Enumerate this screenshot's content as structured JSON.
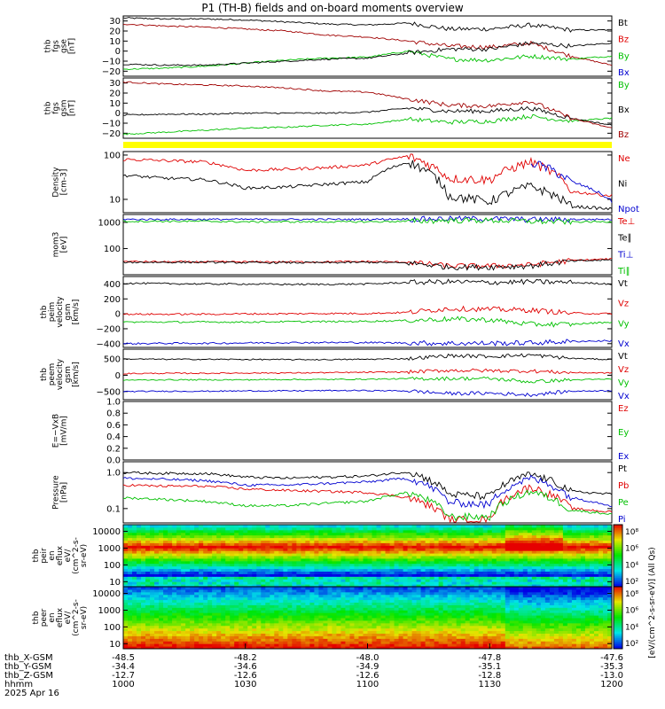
{
  "title": "P1 (TH-B) fields and on-board moments overview",
  "panels": [
    {
      "ylabel": [
        "thb",
        "fgs",
        "gse",
        "[nT]"
      ],
      "ticks": [
        {
          "v": 30,
          "t": "30"
        },
        {
          "v": 20,
          "t": "20"
        },
        {
          "v": 10,
          "t": "10"
        },
        {
          "v": 0,
          "t": "0"
        },
        {
          "v": -10,
          "t": "−10"
        },
        {
          "v": -20,
          "t": "−20"
        }
      ],
      "legend": [
        {
          "t": "Bt",
          "c": "#000000"
        },
        {
          "t": "Bz",
          "c": "#e00000"
        },
        {
          "t": "By",
          "c": "#00c000"
        },
        {
          "t": "Bx",
          "c": "#0000d0"
        }
      ]
    },
    {
      "ylabel": [
        "thb",
        "fgs",
        "gsm",
        "[nT]"
      ],
      "ticks": [
        {
          "v": 30,
          "t": "30"
        },
        {
          "v": 20,
          "t": "20"
        },
        {
          "v": 10,
          "t": "10"
        },
        {
          "v": 0,
          "t": "0"
        },
        {
          "v": -10,
          "t": "−10"
        },
        {
          "v": -20,
          "t": "−20"
        }
      ],
      "legend": [
        {
          "t": "By",
          "c": "#00c000"
        },
        {
          "t": "Bx",
          "c": "#000000"
        },
        {
          "t": "Bz",
          "c": "#a00000"
        }
      ]
    },
    {
      "ylabel": [
        "Density",
        "[cm-3]"
      ],
      "ticks": [
        {
          "v": 100,
          "t": "100"
        },
        {
          "v": 10,
          "t": "10"
        }
      ],
      "legend": [
        {
          "t": "Ne",
          "c": "#e00000"
        },
        {
          "t": "Ni",
          "c": "#000000"
        },
        {
          "t": "Npot",
          "c": "#0000d0"
        }
      ]
    },
    {
      "ylabel": [
        "mom3",
        "[eV]"
      ],
      "ticks": [
        {
          "v": 1000,
          "t": "1000"
        },
        {
          "v": 100,
          "t": "100"
        }
      ],
      "legend": [
        {
          "t": "Te⊥",
          "c": "#e00000"
        },
        {
          "t": "Te∥",
          "c": "#000000"
        },
        {
          "t": "Ti⊥",
          "c": "#0000d0"
        },
        {
          "t": "Ti∥",
          "c": "#00c000"
        }
      ]
    },
    {
      "ylabel": [
        "thb",
        "peim",
        "velocity",
        "gsm",
        "[km/s]"
      ],
      "ticks": [
        {
          "v": 400,
          "t": "400"
        },
        {
          "v": 200,
          "t": "200"
        },
        {
          "v": 0,
          "t": "0"
        },
        {
          "v": -200,
          "t": "−200"
        },
        {
          "v": -400,
          "t": "−400"
        }
      ],
      "legend": [
        {
          "t": "Vt",
          "c": "#000000"
        },
        {
          "t": "Vz",
          "c": "#e00000"
        },
        {
          "t": "Vy",
          "c": "#00c000"
        },
        {
          "t": "Vx",
          "c": "#0000d0"
        }
      ]
    },
    {
      "ylabel": [
        "thb",
        "peem",
        "velocity",
        "gsm",
        "[km/s]"
      ],
      "ticks": [
        {
          "v": 500,
          "t": "500"
        },
        {
          "v": 0,
          "t": "0"
        },
        {
          "v": -500,
          "t": "−500"
        }
      ],
      "legend": [
        {
          "t": "Vt",
          "c": "#000000"
        },
        {
          "t": "Vz",
          "c": "#e00000"
        },
        {
          "t": "Vy",
          "c": "#00c000"
        },
        {
          "t": "Vx",
          "c": "#0000d0"
        }
      ]
    },
    {
      "ylabel": [
        "E=−VxB",
        "[mV/m]"
      ],
      "ticks": [
        {
          "v": 1.0,
          "t": "1.0"
        },
        {
          "v": 0.8,
          "t": "0.8"
        },
        {
          "v": 0.6,
          "t": "0.6"
        },
        {
          "v": 0.4,
          "t": "0.4"
        },
        {
          "v": 0.2,
          "t": "0.2"
        },
        {
          "v": 0.0,
          "t": "0.0"
        }
      ],
      "legend": [
        {
          "t": "Ez",
          "c": "#e00000"
        },
        {
          "t": "Ey",
          "c": "#00c000"
        },
        {
          "t": "Ex",
          "c": "#0000d0"
        }
      ]
    },
    {
      "ylabel": [
        "Pressure",
        "[nPa]"
      ],
      "ticks": [
        {
          "v": 1.0,
          "t": "1.0"
        },
        {
          "v": 0.1,
          "t": "0.1"
        }
      ],
      "legend": [
        {
          "t": "Pt",
          "c": "#000000"
        },
        {
          "t": "Pb",
          "c": "#e00000"
        },
        {
          "t": "Pe",
          "c": "#00c000"
        },
        {
          "t": "Pi",
          "c": "#0000d0"
        }
      ]
    },
    {
      "ylabel": [
        "thb",
        "peir",
        "en",
        "eflux",
        "eV/",
        "(cm^2-s-",
        "sr-eV)"
      ],
      "ticks": [
        {
          "v": 10000,
          "t": "10000"
        },
        {
          "v": 1000,
          "t": "1000"
        },
        {
          "v": 100,
          "t": "100"
        },
        {
          "v": 10,
          "t": "10"
        }
      ]
    },
    {
      "ylabel": [
        "thb",
        "peer",
        "en",
        "eflux",
        "eV/",
        "(cm^2-s-",
        "sr-eV)"
      ],
      "ticks": [
        {
          "v": 10000,
          "t": "10000"
        },
        {
          "v": 1000,
          "t": "1000"
        },
        {
          "v": 100,
          "t": "100"
        },
        {
          "v": 10,
          "t": "10"
        }
      ]
    }
  ],
  "colorbar": {
    "ticks": [
      "10⁸",
      "10⁶",
      "10⁴",
      "10²",
      "10⁸",
      "10⁶",
      "10⁴",
      "10²"
    ],
    "label": "[eV/(cm^2-s-sr-eV)] (All Qs)"
  },
  "xaxis": {
    "row_labels": [
      "thb_X-GSM",
      "thb_Y-GSM",
      "thb_Z-GSM",
      "hhmm",
      "2025 Apr 16"
    ],
    "columns": [
      {
        "x": "-48.5",
        "y": "-34.4",
        "z": "-12.7",
        "t": "1000"
      },
      {
        "x": "-48.2",
        "y": "-34.6",
        "z": "-12.6",
        "t": "1030"
      },
      {
        "x": "-48.0",
        "y": "-34.9",
        "z": "-12.6",
        "t": "1100"
      },
      {
        "x": "-47.8",
        "y": "-35.1",
        "z": "-12.8",
        "t": "1130"
      },
      {
        "x": "-47.6",
        "y": "-35.3",
        "z": "-13.0",
        "t": "1200"
      }
    ]
  },
  "chart_data": [
    {
      "type": "line",
      "title": "",
      "ylabel": "thb fgs gse [nT]",
      "ylim": [
        -25,
        35
      ],
      "x": [
        "1000",
        "1015",
        "1030",
        "1045",
        "1100",
        "1115",
        "1125",
        "1130",
        "1135",
        "1145",
        "1150",
        "1155",
        "1200"
      ],
      "series": [
        {
          "name": "Bt",
          "values": [
            33,
            32,
            32,
            31,
            29,
            27,
            26,
            28,
            22,
            22,
            26,
            21,
            21
          ]
        },
        {
          "name": "Bz",
          "values": [
            27,
            25,
            24,
            22,
            20,
            16,
            14,
            10,
            5,
            4,
            8,
            -5,
            -14
          ]
        },
        {
          "name": "By",
          "values": [
            -18,
            -17,
            -15,
            -12,
            -9,
            -7,
            -6,
            0,
            -8,
            -9,
            -5,
            -8,
            -5
          ]
        },
        {
          "name": "Bx",
          "values": [
            -13,
            -14,
            -14,
            -12,
            -10,
            -8,
            -7,
            -2,
            2,
            2,
            8,
            5,
            8
          ]
        }
      ]
    },
    {
      "type": "line",
      "title": "",
      "ylabel": "thb fgs gsm [nT]",
      "ylim": [
        -25,
        35
      ],
      "x": [
        "1000",
        "1015",
        "1030",
        "1045",
        "1100",
        "1115",
        "1125",
        "1130",
        "1135",
        "1145",
        "1150",
        "1155",
        "1200"
      ],
      "series": [
        {
          "name": "By",
          "values": [
            -21,
            -19,
            -17,
            -15,
            -14,
            -12,
            -11,
            -6,
            -9,
            -8,
            -3,
            -8,
            -5
          ]
        },
        {
          "name": "Bx",
          "values": [
            -2,
            -1,
            -1,
            0,
            0,
            0,
            1,
            5,
            2,
            2,
            5,
            -5,
            -12
          ]
        },
        {
          "name": "Bz",
          "values": [
            31,
            29,
            28,
            27,
            25,
            22,
            21,
            14,
            8,
            7,
            12,
            -5,
            -15
          ]
        }
      ]
    },
    {
      "type": "line",
      "title": "",
      "ylabel": "Density [cm-3]",
      "ylim": [
        5,
        120
      ],
      "yscale": "log",
      "x": [
        "1000",
        "1015",
        "1030",
        "1045",
        "1100",
        "1115",
        "1125",
        "1130",
        "1135",
        "1145",
        "1150",
        "1155",
        "1200"
      ],
      "series": [
        {
          "name": "Ne",
          "values": [
            80,
            75,
            70,
            45,
            48,
            52,
            60,
            95,
            30,
            28,
            70,
            15,
            12
          ]
        },
        {
          "name": "Ni",
          "values": [
            35,
            30,
            28,
            18,
            19,
            22,
            25,
            70,
            12,
            9,
            20,
            7,
            6
          ]
        },
        {
          "name": "Npot",
          "values": [
            null,
            null,
            null,
            null,
            null,
            null,
            null,
            null,
            null,
            null,
            70,
            25,
            9
          ]
        }
      ]
    },
    {
      "type": "line",
      "title": "",
      "ylabel": "mom3 [eV]",
      "ylim": [
        10,
        2000
      ],
      "yscale": "log",
      "x": [
        "1000",
        "1015",
        "1030",
        "1045",
        "1100",
        "1115",
        "1125",
        "1130",
        "1135",
        "1145",
        "1150",
        "1155",
        "1200"
      ],
      "series": [
        {
          "name": "Te⊥",
          "values": [
            32,
            31,
            31,
            31,
            31,
            31,
            32,
            30,
            22,
            22,
            24,
            35,
            40
          ]
        },
        {
          "name": "Te∥",
          "values": [
            30,
            30,
            30,
            29,
            29,
            29,
            30,
            28,
            20,
            20,
            22,
            33,
            37
          ]
        },
        {
          "name": "Ti⊥",
          "values": [
            1300,
            1300,
            1300,
            1300,
            1300,
            1300,
            1300,
            1350,
            1400,
            1400,
            1300,
            1300,
            1300
          ]
        },
        {
          "name": "Ti∥",
          "values": [
            1100,
            1100,
            1100,
            1050,
            1050,
            1050,
            1050,
            1100,
            1200,
            1200,
            1100,
            1050,
            1050
          ]
        }
      ]
    },
    {
      "type": "line",
      "title": "",
      "ylabel": "thb peim velocity gsm [km/s]",
      "ylim": [
        -450,
        500
      ],
      "x": [
        "1000",
        "1015",
        "1030",
        "1045",
        "1100",
        "1115",
        "1125",
        "1130",
        "1135",
        "1145",
        "1150",
        "1155",
        "1200"
      ],
      "series": [
        {
          "name": "Vt",
          "values": [
            410,
            405,
            400,
            400,
            395,
            395,
            400,
            420,
            430,
            420,
            430,
            420,
            400
          ]
        },
        {
          "name": "Vz",
          "values": [
            -5,
            -5,
            -5,
            0,
            0,
            5,
            5,
            20,
            70,
            60,
            50,
            10,
            0
          ]
        },
        {
          "name": "Vy",
          "values": [
            -110,
            -110,
            -110,
            -110,
            -105,
            -105,
            -100,
            -90,
            -70,
            -80,
            -140,
            -140,
            -110
          ]
        },
        {
          "name": "Vx",
          "values": [
            -400,
            -395,
            -395,
            -390,
            -385,
            -385,
            -385,
            -390,
            -395,
            -395,
            -390,
            -370,
            -360
          ]
        }
      ]
    },
    {
      "type": "line",
      "title": "",
      "ylabel": "thb peem velocity gsm [km/s]",
      "ylim": [
        -750,
        800
      ],
      "x": [
        "1000",
        "1015",
        "1030",
        "1045",
        "1100",
        "1115",
        "1125",
        "1130",
        "1135",
        "1145",
        "1150",
        "1155",
        "1200"
      ],
      "series": [
        {
          "name": "Vt",
          "values": [
            500,
            490,
            490,
            485,
            480,
            480,
            490,
            510,
            600,
            580,
            620,
            520,
            480
          ]
        },
        {
          "name": "Vz",
          "values": [
            50,
            60,
            60,
            70,
            70,
            80,
            90,
            100,
            150,
            140,
            130,
            80,
            70
          ]
        },
        {
          "name": "Vy",
          "values": [
            -150,
            -140,
            -140,
            -140,
            -130,
            -130,
            -120,
            -110,
            -100,
            -100,
            -200,
            -140,
            -120
          ]
        },
        {
          "name": "Vx",
          "values": [
            -500,
            -490,
            -490,
            -480,
            -480,
            -470,
            -470,
            -480,
            -560,
            -550,
            -600,
            -490,
            -470
          ]
        }
      ]
    },
    {
      "type": "line",
      "title": "",
      "ylabel": "E=-VxB [mV/m]",
      "ylim": [
        0,
        1
      ],
      "series": [
        {
          "name": "Ez",
          "values": []
        },
        {
          "name": "Ey",
          "values": []
        },
        {
          "name": "Ex",
          "values": []
        }
      ]
    },
    {
      "type": "line",
      "title": "",
      "ylabel": "Pressure [nPa]",
      "ylim": [
        0.04,
        2
      ],
      "yscale": "log",
      "x": [
        "1000",
        "1015",
        "1030",
        "1045",
        "1100",
        "1115",
        "1125",
        "1130",
        "1135",
        "1145",
        "1150",
        "1155",
        "1200"
      ],
      "series": [
        {
          "name": "Pt",
          "values": [
            1.0,
            0.95,
            0.95,
            0.75,
            0.7,
            0.75,
            0.8,
            1.05,
            0.25,
            0.22,
            0.9,
            0.3,
            0.25
          ]
        },
        {
          "name": "Pb",
          "values": [
            0.45,
            0.42,
            0.42,
            0.35,
            0.32,
            0.3,
            0.28,
            0.2,
            0.05,
            0.05,
            0.4,
            0.1,
            0.08
          ]
        },
        {
          "name": "Pe",
          "values": [
            0.2,
            0.18,
            0.16,
            0.12,
            0.12,
            0.14,
            0.16,
            0.28,
            0.06,
            0.06,
            0.3,
            0.09,
            0.07
          ]
        },
        {
          "name": "Pi",
          "values": [
            0.7,
            0.65,
            0.6,
            0.45,
            0.45,
            0.5,
            0.55,
            0.7,
            0.15,
            0.13,
            0.7,
            0.2,
            0.12
          ]
        }
      ]
    },
    {
      "type": "heatmap",
      "title": "",
      "ylabel": "thb peir en eflux eV/(cm^2-s-sr-eV)",
      "ylim": [
        5,
        25000
      ],
      "yscale": "log",
      "zscale": "log",
      "zlim": [
        100,
        100000000
      ]
    },
    {
      "type": "heatmap",
      "title": "",
      "ylabel": "thb peer en eflux eV/(cm^2-s-sr-eV)",
      "ylim": [
        5,
        25000
      ],
      "yscale": "log",
      "zscale": "log",
      "zlim": [
        100,
        100000000
      ]
    }
  ]
}
